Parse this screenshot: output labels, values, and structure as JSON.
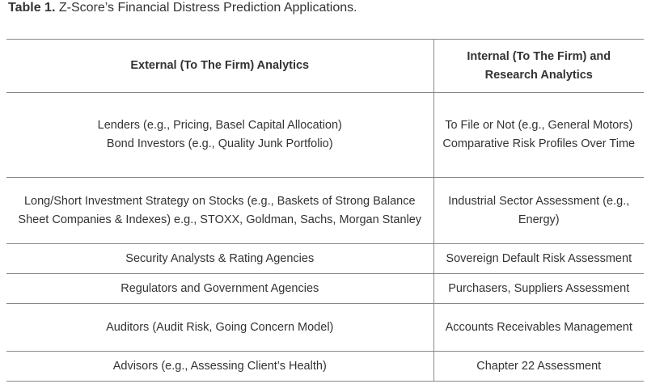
{
  "caption": {
    "label": "Table 1.",
    "text": " Z-Score’s Financial Distress Prediction Applications."
  },
  "table": {
    "headers": [
      "External (To The Firm) Analytics",
      "Internal (To The Firm) and Research Analytics"
    ],
    "rows": [
      {
        "external": [
          "Lenders (e.g., Pricing, Basel Capital Allocation)",
          "Bond Investors (e.g., Quality Junk Portfolio)"
        ],
        "internal": [
          "To File or Not (e.g., General Motors)",
          "Comparative Risk Profiles Over Time"
        ]
      },
      {
        "external": [
          "Long/Short Investment Strategy on Stocks (e.g., Baskets of Strong Balance Sheet Companies & Indexes) e.g., STOXX, Goldman, Sachs, Morgan Stanley"
        ],
        "internal": [
          "Industrial Sector Assessment (e.g., Energy)"
        ]
      },
      {
        "external": [
          "Security Analysts & Rating Agencies"
        ],
        "internal": [
          "Sovereign Default Risk Assessment"
        ]
      },
      {
        "external": [
          "Regulators and Government Agencies"
        ],
        "internal": [
          "Purchasers, Suppliers Assessment"
        ]
      },
      {
        "external": [
          "Auditors (Audit Risk, Going Concern Model)"
        ],
        "internal": [
          "Accounts Receivables Management"
        ]
      },
      {
        "external": [
          "Advisors (e.g., Assessing Client’s Health)"
        ],
        "internal": [
          "Chapter 22 Assessment"
        ]
      }
    ]
  }
}
